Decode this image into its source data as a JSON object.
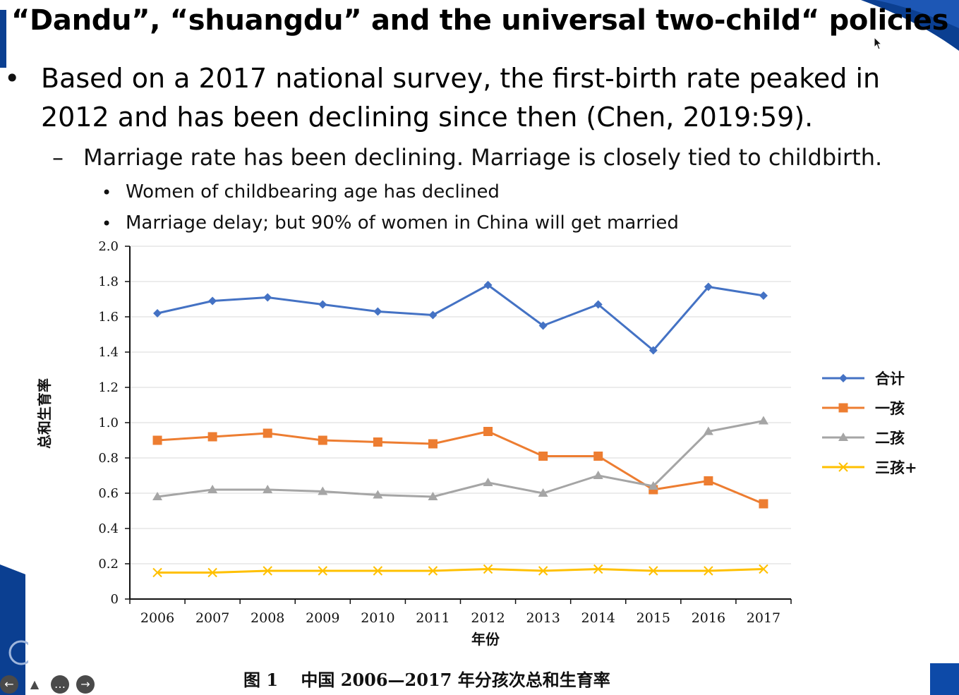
{
  "slide": {
    "title": "“Dandu”, “shuangdu” and the universal two-child“ policies",
    "bullets": {
      "l1_mark": "•",
      "l1_text": "Based on a 2017 national survey, the first-birth rate peaked in 2012 and has been declining since then (Chen, 2019:59).",
      "l2_mark": "–",
      "l2_text": "Marriage rate has been declining. Marriage is closely tied to childbirth.",
      "l3_mark": "•",
      "l3_items": [
        "Women of childbearing age has declined",
        "Marriage delay; but 90% of women in China will get married"
      ]
    }
  },
  "chart_data": {
    "type": "line",
    "title": "",
    "caption": "图 1　 中国 2006—2017 年分孩次总和生育率",
    "xlabel": "年份",
    "ylabel": "总和生育率",
    "categories": [
      "2006",
      "2007",
      "2008",
      "2009",
      "2010",
      "2011",
      "2012",
      "2013",
      "2014",
      "2015",
      "2016",
      "2017"
    ],
    "ylim": [
      0,
      2.0
    ],
    "yticks": [
      "0",
      "0.2",
      "0.4",
      "0.6",
      "0.8",
      "1.0",
      "1.2",
      "1.4",
      "1.6",
      "1.8",
      "2.0"
    ],
    "grid": true,
    "legend_position": "right",
    "series": [
      {
        "name": "合计",
        "color": "#4472c4",
        "marker": "diamond",
        "values": [
          1.62,
          1.69,
          1.71,
          1.67,
          1.63,
          1.61,
          1.78,
          1.55,
          1.67,
          1.41,
          1.77,
          1.72
        ]
      },
      {
        "name": "一孩",
        "color": "#ed7d31",
        "marker": "square",
        "values": [
          0.9,
          0.92,
          0.94,
          0.9,
          0.89,
          0.88,
          0.95,
          0.81,
          0.81,
          0.62,
          0.67,
          0.54
        ]
      },
      {
        "name": "二孩",
        "color": "#a5a5a5",
        "marker": "triangle",
        "values": [
          0.58,
          0.62,
          0.62,
          0.61,
          0.59,
          0.58,
          0.66,
          0.6,
          0.7,
          0.64,
          0.95,
          1.01
        ]
      },
      {
        "name": "三孩+",
        "color": "#ffc000",
        "marker": "x",
        "values": [
          0.15,
          0.15,
          0.16,
          0.16,
          0.16,
          0.16,
          0.17,
          0.16,
          0.17,
          0.16,
          0.16,
          0.17
        ]
      }
    ]
  },
  "controls": {
    "prev_glyph": "←",
    "pen_glyph": "▲",
    "menu_glyph": "…",
    "next_glyph": "→"
  },
  "icons": {
    "prev": "arrow-left-icon",
    "pen": "pen-icon",
    "menu": "more-icon",
    "next": "arrow-right-icon",
    "cursor": "mouse-pointer-icon"
  },
  "colors": {
    "accent_blue": "#0b3f91"
  }
}
